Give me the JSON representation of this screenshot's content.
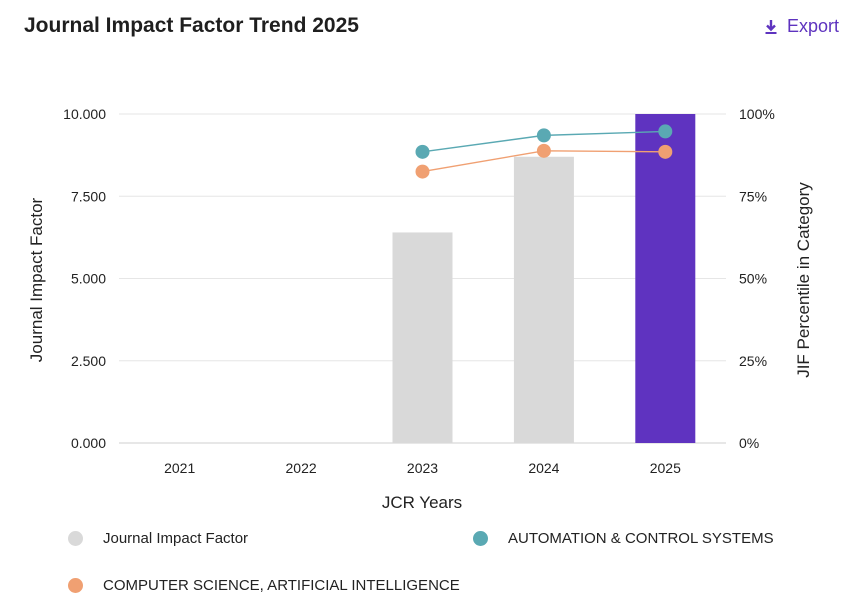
{
  "header": {
    "title": "Journal Impact Factor Trend 2025",
    "export_label": "Export"
  },
  "colors": {
    "bar_default": "#d9d9d9",
    "bar_highlight": "#5f33c0",
    "automation": "#5aa9b3",
    "cs_ai": "#f0a072",
    "accent": "#5e33bf"
  },
  "chart_data": {
    "type": "bar",
    "categories": [
      "2021",
      "2022",
      "2023",
      "2024",
      "2025"
    ],
    "xlabel": "JCR Years",
    "ylabel": "Journal Impact Factor",
    "y2label": "JIF Percentile in Category",
    "ylim": [
      0,
      10
    ],
    "y2lim": [
      0,
      100
    ],
    "yticks": [
      "0.000",
      "2.500",
      "5.000",
      "7.500",
      "10.000"
    ],
    "y2ticks": [
      "0%",
      "25%",
      "50%",
      "75%",
      "100%"
    ],
    "grid": true,
    "series": [
      {
        "name": "Journal Impact Factor",
        "kind": "bar",
        "values": [
          null,
          null,
          6.4,
          8.7,
          10.0
        ],
        "highlight_index": 4
      },
      {
        "name": "AUTOMATION & CONTROL SYSTEMS",
        "kind": "line",
        "axis": "right",
        "values": [
          null,
          null,
          88.5,
          93.5,
          94.7
        ]
      },
      {
        "name": "COMPUTER SCIENCE, ARTIFICIAL INTELLIGENCE",
        "kind": "line",
        "axis": "right",
        "values": [
          null,
          null,
          82.5,
          88.8,
          88.5
        ]
      }
    ],
    "legend_position": "bottom"
  },
  "legend": [
    {
      "label": "Journal Impact Factor",
      "color": "#d9d9d9"
    },
    {
      "label": "AUTOMATION & CONTROL SYSTEMS",
      "color": "#5aa9b3"
    },
    {
      "label": "COMPUTER SCIENCE, ARTIFICIAL INTELLIGENCE",
      "color": "#f0a072"
    }
  ]
}
